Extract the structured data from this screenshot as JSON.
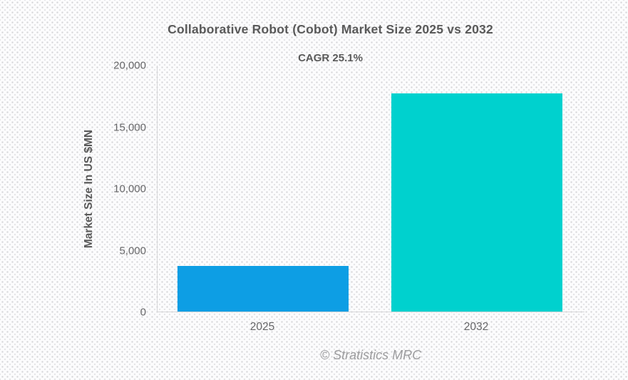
{
  "header": {
    "title": "Collaborative Robot (Cobot) Market Size 2025 vs 2032",
    "subtitle": "CAGR 25.1%"
  },
  "footer": {
    "attribution": "© Stratistics MRC"
  },
  "chart_data": {
    "type": "bar",
    "title": "Collaborative Robot (Cobot) Market Size 2025 vs 2032",
    "subtitle": "CAGR 25.1%",
    "categories": [
      "2025",
      "2032"
    ],
    "values": [
      3700,
      17700
    ],
    "bar_colors": [
      "#0d9ee4",
      "#00d1ce"
    ],
    "xlabel": "",
    "ylabel": "Market Size In US $MN",
    "ylim": [
      0,
      20000
    ],
    "yticks": [
      0,
      5000,
      10000,
      15000,
      20000
    ],
    "ytick_labels": [
      "0",
      "5,000",
      "10,000",
      "15,000",
      "20,000"
    ],
    "grid": false,
    "legend": "none",
    "annotations": [
      "CAGR 25.1%"
    ]
  },
  "colors": {
    "bar_2025": "#0d9ee4",
    "bar_2032": "#00d1ce",
    "axis_line": "#d5d5d7",
    "title_text": "#595959",
    "tick_text": "#666668",
    "attribution_text": "#9c9c9e"
  }
}
